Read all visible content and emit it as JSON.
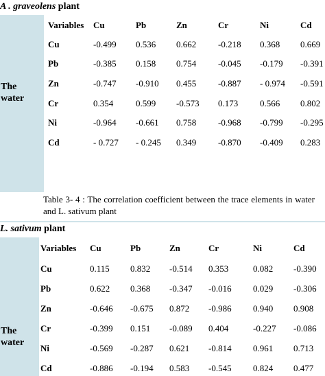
{
  "section1": {
    "title_prefix": "A",
    "title_species": " . graveolens",
    "title_suffix": " plant",
    "side_line1": "The",
    "side_line2": "water",
    "headers": [
      "Variables",
      "Cu",
      "Pb",
      "Zn",
      "Cr",
      "Ni",
      "Cd"
    ],
    "rows": [
      {
        "label": "Cu",
        "values": [
          "-0.499",
          "0.536",
          "0.662",
          "-0.218",
          "0.368",
          "0.669"
        ]
      },
      {
        "label": "Pb",
        "values": [
          "-0.385",
          "0.158",
          "0.754",
          "-0.045",
          "-0.179",
          "-0.391"
        ]
      },
      {
        "label": "Zn",
        "values": [
          "-0.747",
          "-0.910",
          "0.455",
          "-0.887",
          "- 0.974",
          "-0.591"
        ]
      },
      {
        "label": "Cr",
        "values": [
          "0.354",
          "0.599",
          "-0.573",
          "0.173",
          "0.566",
          "0.802"
        ]
      },
      {
        "label": "Ni",
        "values": [
          "-0.964",
          "-0.661",
          "0.758",
          "-0.968",
          "-0.799",
          "-0.295"
        ]
      },
      {
        "label": "Cd",
        "values": [
          "- 0.727",
          "- 0.245",
          "0.349",
          "-0.870",
          "-0.409",
          "0.283"
        ]
      }
    ]
  },
  "caption": "Table 3- 4 : The correlation coefficient between the trace elements in water and L. sativum plant",
  "section2": {
    "title_species": "L. sativum",
    "title_suffix": " plant",
    "side_line1": "The",
    "side_line2": "water",
    "headers": [
      "Variables",
      "Cu",
      "Pb",
      "Zn",
      "Cr",
      "Ni",
      "Cd"
    ],
    "rows": [
      {
        "label": "Cu",
        "values": [
          "0.115",
          "0.832",
          "-0.514",
          "0.353",
          "0.082",
          "-0.390"
        ]
      },
      {
        "label": "Pb",
        "values": [
          "0.622",
          "0.368",
          "-0.347",
          "-0.016",
          "0.029",
          "-0.306"
        ]
      },
      {
        "label": "Zn",
        "values": [
          "-0.646",
          "-0.675",
          "0.872",
          "-0.986",
          "0.940",
          "0.908"
        ]
      },
      {
        "label": "Cr",
        "values": [
          "-0.399",
          "0.151",
          "-0.089",
          "0.404",
          "-0.227",
          "-0.086"
        ]
      },
      {
        "label": "Ni",
        "values": [
          "-0.569",
          "-0.287",
          "0.621",
          "-0.814",
          "0.961",
          "0.713"
        ]
      },
      {
        "label": "Cd",
        "values": [
          "-0.886",
          "-0.194",
          "0.583",
          "-0.545",
          "0.824",
          "0.477"
        ]
      }
    ]
  }
}
